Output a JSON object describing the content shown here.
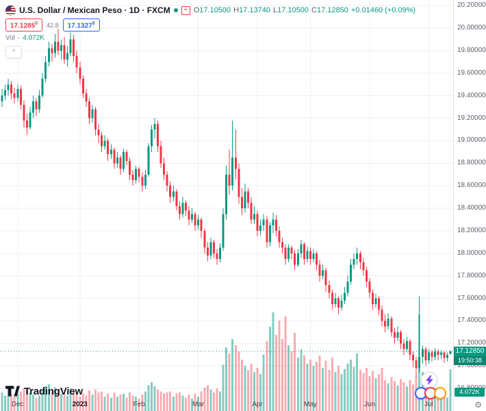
{
  "header": {
    "title": "U.S. Dollar / Mexican Peso · 1D · FXCM",
    "ohlc": {
      "o_label": "O",
      "o_value": "17.10500",
      "h_label": "H",
      "h_value": "17.13740",
      "l_label": "L",
      "l_value": "17.10500",
      "c_label": "C",
      "c_value": "17.12850",
      "change": "+0.01460 (+0.09%)"
    },
    "sell_price_main": "17.1285",
    "sell_price_sup": "0",
    "spread": "42.8",
    "buy_price_main": "17.1327",
    "buy_price_sup": "8",
    "vol_label": "Vol",
    "vol_sep": "·",
    "vol_value": "4.072K"
  },
  "price_scale": {
    "current_price_label": "17.12850",
    "countdown": "19:50:38",
    "volume_label": "4.072K"
  },
  "footer": {
    "logo_text": "TradingView"
  },
  "icons": {
    "gear_glyph": "⚙",
    "collapse_glyph": "⌃",
    "news_glyph": "≡"
  },
  "widgets": {
    "reaction_colors": [
      "#2962ff",
      "#f23645",
      "#ff9800"
    ]
  },
  "chart_data": {
    "type": "candlestick",
    "title": "U.S. Dollar / Mexican Peso, Daily, FXCM",
    "current_bar": {
      "open": 17.105,
      "high": 17.1374,
      "low": 17.105,
      "close": 17.1285,
      "change": 0.0146,
      "change_pct": 0.09
    },
    "last_price": 17.1285,
    "current_volume_k": 4.072,
    "price_range": {
      "min": 16.6,
      "max": 20.25
    },
    "price_ticks": [
      {
        "text": "20.20000",
        "value": 20.2
      },
      {
        "text": "20.00000",
        "value": 20.0
      },
      {
        "text": "19.80000",
        "value": 19.8
      },
      {
        "text": "19.60000",
        "value": 19.6
      },
      {
        "text": "19.40000",
        "value": 19.4
      },
      {
        "text": "19.20000",
        "value": 19.2
      },
      {
        "text": "19.00000",
        "value": 19.0
      },
      {
        "text": "18.80000",
        "value": 18.8
      },
      {
        "text": "18.60000",
        "value": 18.6
      },
      {
        "text": "18.40000",
        "value": 18.4
      },
      {
        "text": "18.20000",
        "value": 18.2
      },
      {
        "text": "18.00000",
        "value": 18.0
      },
      {
        "text": "17.80000",
        "value": 17.8
      },
      {
        "text": "17.60000",
        "value": 17.6
      },
      {
        "text": "17.40000",
        "value": 17.4
      },
      {
        "text": "17.20000",
        "value": 17.2
      },
      {
        "text": "17.00000",
        "value": 17.0
      },
      {
        "text": "16.80000",
        "value": 16.8
      }
    ],
    "time_ticks": [
      {
        "label": "Dec",
        "idx": 5,
        "bold": false
      },
      {
        "label": "2023",
        "idx": 25,
        "bold": true
      },
      {
        "label": "Feb",
        "idx": 44,
        "bold": false
      },
      {
        "label": "Mar",
        "idx": 63,
        "bold": false
      },
      {
        "label": "Apr",
        "idx": 82,
        "bold": false
      },
      {
        "label": "May",
        "idx": 99,
        "bold": false
      },
      {
        "label": "Jun",
        "idx": 118,
        "bold": false
      },
      {
        "label": "Jul",
        "idx": 137,
        "bold": false
      }
    ],
    "colors": {
      "up": "#089981",
      "down": "#f23645",
      "vol_up": "rgba(8,153,129,0.5)",
      "vol_down": "rgba(242,54,69,0.42)",
      "grid": "#eceff5",
      "last_price_line": "#089981"
    },
    "candle_format": [
      "open",
      "high",
      "low",
      "close",
      "volume_k"
    ],
    "candles": [
      [
        19.35,
        19.46,
        19.3,
        19.4,
        1.8
      ],
      [
        19.4,
        19.5,
        19.36,
        19.45,
        1.5
      ],
      [
        19.45,
        19.55,
        19.4,
        19.5,
        2.2
      ],
      [
        19.5,
        19.53,
        19.37,
        19.42,
        1.6
      ],
      [
        19.42,
        19.47,
        19.33,
        19.38,
        1.4
      ],
      [
        19.38,
        19.5,
        19.35,
        19.46,
        1.7
      ],
      [
        19.46,
        19.49,
        19.28,
        19.32,
        1.9
      ],
      [
        19.32,
        19.36,
        19.12,
        19.18,
        2.2
      ],
      [
        19.18,
        19.24,
        19.05,
        19.12,
        2.0
      ],
      [
        19.12,
        19.3,
        19.1,
        19.25,
        1.8
      ],
      [
        19.25,
        19.4,
        19.2,
        19.35,
        1.6
      ],
      [
        19.35,
        19.38,
        19.22,
        19.28,
        1.3
      ],
      [
        19.28,
        19.45,
        19.25,
        19.4,
        1.5
      ],
      [
        19.4,
        19.6,
        19.38,
        19.55,
        2.1
      ],
      [
        19.55,
        19.75,
        19.52,
        19.7,
        2.4
      ],
      [
        19.7,
        19.88,
        19.66,
        19.82,
        2.6
      ],
      [
        19.82,
        19.86,
        19.7,
        19.78,
        1.9
      ],
      [
        19.78,
        19.95,
        19.74,
        19.88,
        2.3
      ],
      [
        19.88,
        19.99,
        19.76,
        19.8,
        2.0
      ],
      [
        19.8,
        19.9,
        19.72,
        19.85,
        1.7
      ],
      [
        19.85,
        19.92,
        19.68,
        19.72,
        1.8
      ],
      [
        19.72,
        19.84,
        19.66,
        19.78,
        1.5
      ],
      [
        19.78,
        19.96,
        19.75,
        19.9,
        2.2
      ],
      [
        19.9,
        19.94,
        19.7,
        19.75,
        1.9
      ],
      [
        19.75,
        19.8,
        19.6,
        19.65,
        1.6
      ],
      [
        19.65,
        19.7,
        19.5,
        19.55,
        1.4
      ],
      [
        19.55,
        19.58,
        19.38,
        19.42,
        1.7
      ],
      [
        19.42,
        19.46,
        19.3,
        19.35,
        1.5
      ],
      [
        19.35,
        19.38,
        19.15,
        19.2,
        2.0
      ],
      [
        19.2,
        19.32,
        19.16,
        19.28,
        1.6
      ],
      [
        19.28,
        19.3,
        19.05,
        19.1,
        2.1
      ],
      [
        19.1,
        19.15,
        18.98,
        19.05,
        1.8
      ],
      [
        19.05,
        19.08,
        18.9,
        18.95,
        1.9
      ],
      [
        18.95,
        19.05,
        18.92,
        19.0,
        1.4
      ],
      [
        19.0,
        19.02,
        18.82,
        18.88,
        1.7
      ],
      [
        18.88,
        18.97,
        18.84,
        18.92,
        1.3
      ],
      [
        18.92,
        18.94,
        18.75,
        18.8,
        1.8
      ],
      [
        18.8,
        18.9,
        18.76,
        18.85,
        1.4
      ],
      [
        18.85,
        18.87,
        18.7,
        18.75,
        1.6
      ],
      [
        18.75,
        18.93,
        18.72,
        18.9,
        1.7
      ],
      [
        18.9,
        18.92,
        18.78,
        18.82,
        1.3
      ],
      [
        18.82,
        18.85,
        18.65,
        18.7,
        1.8
      ],
      [
        18.7,
        18.74,
        18.6,
        18.65,
        1.5
      ],
      [
        18.65,
        18.78,
        18.62,
        18.75,
        1.4
      ],
      [
        18.75,
        18.77,
        18.63,
        18.68,
        1.2
      ],
      [
        18.68,
        18.72,
        18.55,
        18.6,
        1.6
      ],
      [
        18.6,
        18.74,
        18.57,
        18.7,
        1.9
      ],
      [
        18.7,
        18.98,
        18.68,
        18.95,
        2.5
      ],
      [
        18.95,
        19.14,
        18.9,
        19.1,
        2.8
      ],
      [
        19.1,
        19.2,
        19.02,
        19.15,
        2.4
      ],
      [
        19.15,
        19.18,
        18.9,
        18.95,
        2.1
      ],
      [
        18.95,
        19.0,
        18.76,
        18.8,
        1.9
      ],
      [
        18.8,
        18.85,
        18.65,
        18.7,
        1.7
      ],
      [
        18.7,
        18.73,
        18.55,
        18.6,
        1.8
      ],
      [
        18.6,
        18.64,
        18.45,
        18.5,
        1.9
      ],
      [
        18.5,
        18.6,
        18.46,
        18.55,
        1.4
      ],
      [
        18.55,
        18.57,
        18.38,
        18.42,
        1.7
      ],
      [
        18.42,
        18.46,
        18.3,
        18.35,
        1.8
      ],
      [
        18.35,
        18.5,
        18.32,
        18.45,
        1.5
      ],
      [
        18.45,
        18.47,
        18.33,
        18.38,
        1.3
      ],
      [
        18.38,
        18.42,
        18.25,
        18.3,
        1.6
      ],
      [
        18.3,
        18.4,
        18.27,
        18.35,
        1.2
      ],
      [
        18.35,
        18.37,
        18.2,
        18.25,
        1.7
      ],
      [
        18.25,
        18.34,
        18.21,
        18.3,
        1.4
      ],
      [
        18.3,
        18.32,
        18.14,
        18.2,
        1.9
      ],
      [
        18.2,
        18.22,
        18.0,
        18.05,
        2.3
      ],
      [
        18.05,
        18.1,
        17.93,
        17.98,
        2.5
      ],
      [
        17.98,
        18.14,
        17.95,
        18.1,
        2.1
      ],
      [
        18.1,
        18.12,
        17.96,
        18.0,
        1.8
      ],
      [
        18.0,
        18.04,
        17.9,
        17.95,
        2.2
      ],
      [
        17.95,
        18.09,
        17.92,
        18.05,
        1.9
      ],
      [
        18.05,
        18.4,
        18.02,
        18.35,
        4.5
      ],
      [
        18.35,
        18.78,
        18.3,
        18.7,
        6.2
      ],
      [
        18.7,
        18.92,
        18.52,
        18.6,
        5.6
      ],
      [
        18.6,
        19.18,
        18.56,
        18.85,
        7.0
      ],
      [
        18.85,
        19.1,
        18.66,
        18.75,
        6.4
      ],
      [
        18.75,
        18.8,
        18.44,
        18.5,
        5.8
      ],
      [
        18.5,
        18.58,
        18.34,
        18.4,
        5.0
      ],
      [
        18.4,
        18.62,
        18.36,
        18.55,
        4.4
      ],
      [
        18.55,
        18.58,
        18.4,
        18.45,
        4.0
      ],
      [
        18.45,
        18.5,
        18.26,
        18.3,
        4.6
      ],
      [
        18.3,
        18.42,
        18.26,
        18.35,
        3.8
      ],
      [
        18.35,
        18.38,
        18.15,
        18.2,
        4.2
      ],
      [
        18.2,
        18.3,
        18.16,
        18.25,
        3.6
      ],
      [
        18.25,
        18.35,
        18.2,
        18.3,
        5.5
      ],
      [
        18.3,
        18.33,
        18.05,
        18.1,
        6.8
      ],
      [
        18.1,
        18.28,
        18.06,
        18.25,
        8.2
      ],
      [
        18.25,
        18.36,
        18.18,
        18.3,
        9.6
      ],
      [
        18.3,
        18.34,
        18.15,
        18.2,
        7.4
      ],
      [
        18.2,
        18.24,
        18.05,
        18.1,
        8.8
      ],
      [
        18.1,
        18.14,
        18.0,
        18.05,
        7.0
      ],
      [
        18.05,
        18.08,
        17.9,
        17.95,
        9.2
      ],
      [
        17.95,
        18.08,
        17.92,
        18.05,
        6.4
      ],
      [
        18.05,
        18.07,
        17.95,
        18.0,
        5.8
      ],
      [
        18.0,
        18.03,
        17.85,
        17.9,
        7.6
      ],
      [
        17.9,
        18.04,
        17.88,
        18.0,
        5.2
      ],
      [
        18.0,
        18.12,
        17.96,
        18.08,
        6.0
      ],
      [
        18.08,
        18.1,
        17.9,
        17.95,
        5.4
      ],
      [
        17.95,
        18.06,
        17.92,
        18.02,
        4.6
      ],
      [
        18.02,
        18.05,
        17.9,
        17.95,
        5.0
      ],
      [
        17.95,
        18.04,
        17.92,
        18.0,
        4.4
      ],
      [
        18.0,
        18.02,
        17.85,
        17.9,
        4.8
      ],
      [
        17.9,
        17.94,
        17.75,
        17.8,
        5.4
      ],
      [
        17.8,
        17.9,
        17.77,
        17.85,
        4.2
      ],
      [
        17.85,
        17.87,
        17.66,
        17.72,
        4.9
      ],
      [
        17.72,
        17.76,
        17.6,
        17.65,
        4.0
      ],
      [
        17.65,
        17.68,
        17.5,
        17.55,
        5.2
      ],
      [
        17.55,
        17.65,
        17.52,
        17.6,
        3.8
      ],
      [
        17.6,
        17.62,
        17.46,
        17.52,
        4.4
      ],
      [
        17.52,
        17.63,
        17.49,
        17.58,
        3.6
      ],
      [
        17.58,
        17.7,
        17.55,
        17.65,
        4.1
      ],
      [
        17.65,
        17.8,
        17.62,
        17.75,
        4.6
      ],
      [
        17.75,
        17.95,
        17.72,
        17.9,
        5.0
      ],
      [
        17.9,
        18.0,
        17.86,
        17.95,
        4.3
      ],
      [
        17.95,
        18.05,
        17.9,
        18.0,
        5.6
      ],
      [
        18.0,
        18.02,
        17.86,
        17.92,
        4.0
      ],
      [
        17.92,
        17.96,
        17.8,
        17.85,
        3.7
      ],
      [
        17.85,
        17.88,
        17.7,
        17.75,
        4.2
      ],
      [
        17.75,
        17.78,
        17.6,
        17.65,
        3.4
      ],
      [
        17.65,
        17.68,
        17.5,
        17.55,
        3.9
      ],
      [
        17.55,
        17.64,
        17.52,
        17.6,
        3.2
      ],
      [
        17.6,
        17.62,
        17.45,
        17.5,
        3.6
      ],
      [
        17.5,
        17.54,
        17.35,
        17.4,
        4.2
      ],
      [
        17.4,
        17.46,
        17.3,
        17.35,
        3.0
      ],
      [
        17.35,
        17.47,
        17.32,
        17.42,
        2.7
      ],
      [
        17.42,
        17.44,
        17.26,
        17.3,
        3.3
      ],
      [
        17.3,
        17.34,
        17.2,
        17.25,
        2.9
      ],
      [
        17.25,
        17.35,
        17.22,
        17.3,
        2.5
      ],
      [
        17.3,
        17.32,
        17.15,
        17.2,
        3.1
      ],
      [
        17.2,
        17.24,
        17.1,
        17.15,
        2.8
      ],
      [
        17.15,
        17.26,
        17.12,
        17.22,
        2.4
      ],
      [
        17.22,
        17.24,
        17.05,
        17.1,
        3.0
      ],
      [
        17.1,
        17.13,
        16.99,
        17.05,
        2.6
      ],
      [
        17.05,
        17.08,
        16.9,
        16.98,
        3.4
      ],
      [
        16.98,
        17.62,
        16.94,
        17.08,
        9.4
      ],
      [
        17.08,
        17.18,
        17.02,
        17.15,
        3.8
      ],
      [
        17.15,
        17.17,
        17.0,
        17.05,
        2.9
      ],
      [
        17.05,
        17.15,
        17.02,
        17.12,
        2.3
      ],
      [
        17.12,
        17.14,
        17.04,
        17.08,
        2.0
      ],
      [
        17.08,
        17.16,
        17.05,
        17.13,
        2.2
      ],
      [
        17.13,
        17.15,
        17.05,
        17.1,
        1.8
      ],
      [
        17.1,
        17.14,
        17.06,
        17.12,
        1.6
      ],
      [
        17.12,
        17.13,
        17.03,
        17.07,
        1.5
      ],
      [
        17.07,
        17.12,
        17.04,
        17.1,
        1.3
      ],
      [
        17.105,
        17.1374,
        17.105,
        17.1285,
        4.072
      ]
    ]
  }
}
